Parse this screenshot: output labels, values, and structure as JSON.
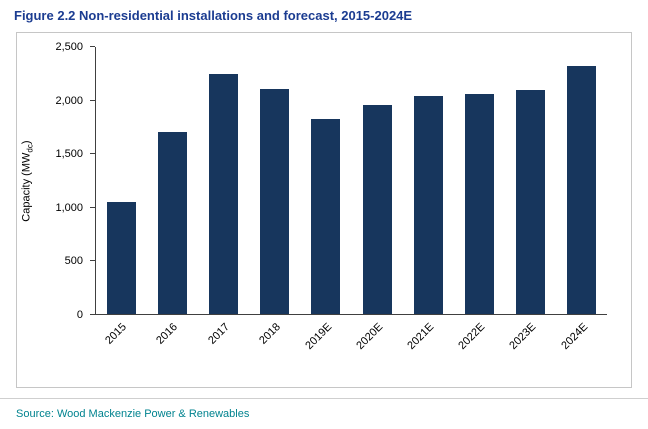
{
  "title": "Figure 2.2 Non-residential installations and forecast, 2015-2024E",
  "source": "Source: Wood Mackenzie Power & Renewables",
  "y_axis": {
    "prefix": "Capacity (MW",
    "sub": "dc",
    "suffix": ")"
  },
  "colors": {
    "title_text": "#1B3C91",
    "bar": "#17365D",
    "source_text": "#00838F",
    "axis": "#404040",
    "chart_border": "#C6C6C6"
  },
  "chart_data": {
    "type": "bar",
    "title": "Figure 2.2 Non-residential installations and forecast, 2015-2024E",
    "categories": [
      "2015",
      "2016",
      "2017",
      "2018",
      "2019E",
      "2020E",
      "2021E",
      "2022E",
      "2023E",
      "2024E"
    ],
    "values": [
      1050,
      1700,
      2250,
      2110,
      1830,
      1960,
      2040,
      2060,
      2100,
      2320
    ],
    "xlabel": "",
    "ylabel": "Capacity (MWdc)",
    "ylim": [
      0,
      2500
    ],
    "yticks": [
      0,
      500,
      1000,
      1500,
      2000,
      2500
    ],
    "ytick_labels": [
      "0",
      "500",
      "1,000",
      "1,500",
      "2,000",
      "2,500"
    ],
    "bar_color": "#17365D",
    "grid": false,
    "legend": false
  }
}
